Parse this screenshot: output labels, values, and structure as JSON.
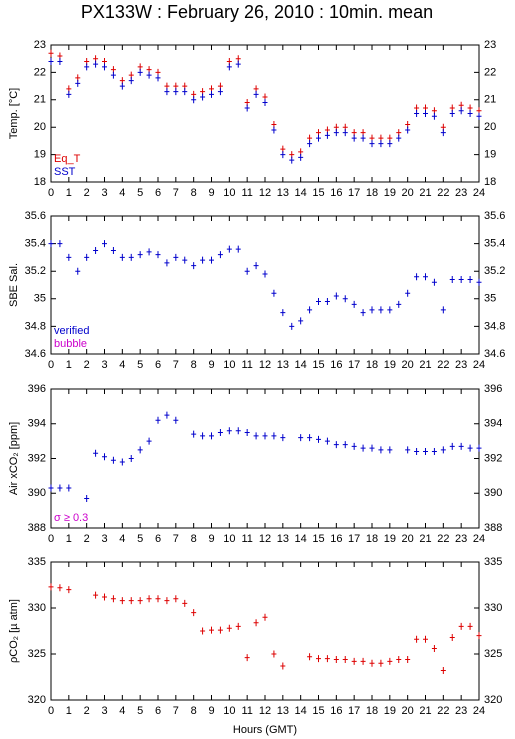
{
  "title": "PX133W : February 26, 2010 : 10min. mean",
  "x_label": "Hours (GMT)",
  "chart_data": [
    {
      "type": "scatter",
      "ylabel": "Temp. [°C]",
      "xlim": [
        0,
        24
      ],
      "xticks": [
        0,
        1,
        2,
        3,
        4,
        5,
        6,
        7,
        8,
        9,
        10,
        11,
        12,
        13,
        14,
        15,
        16,
        17,
        18,
        19,
        20,
        21,
        22,
        23,
        24
      ],
      "ylim": [
        18,
        23
      ],
      "yticks": [
        18,
        19,
        20,
        21,
        22,
        23
      ],
      "x": [
        0,
        0.5,
        1,
        1.5,
        2,
        2.5,
        3,
        3.5,
        4,
        4.5,
        5,
        5.5,
        6,
        6.5,
        7,
        7.5,
        8,
        8.5,
        9,
        9.5,
        10,
        10.5,
        11,
        11.5,
        12,
        12.5,
        13,
        13.5,
        14,
        14.5,
        15,
        15.5,
        16,
        16.5,
        17,
        17.5,
        18,
        18.5,
        19,
        19.5,
        20,
        20.5,
        21,
        21.5,
        22,
        22.5,
        23,
        23.5,
        24
      ],
      "series": [
        {
          "name": "Eq_T",
          "color": "#dd0000",
          "values": [
            22.7,
            22.6,
            21.4,
            21.8,
            22.4,
            22.5,
            22.4,
            22.1,
            21.7,
            21.9,
            22.2,
            22.1,
            22.0,
            21.5,
            21.5,
            21.5,
            21.2,
            21.3,
            21.4,
            21.5,
            22.4,
            22.5,
            20.9,
            21.4,
            21.1,
            20.1,
            19.2,
            19.0,
            19.1,
            19.6,
            19.8,
            19.9,
            20.0,
            20.0,
            19.8,
            19.8,
            19.6,
            19.6,
            19.6,
            19.8,
            20.1,
            20.7,
            20.7,
            20.6,
            20.0,
            20.7,
            20.8,
            20.7,
            20.6
          ]
        },
        {
          "name": "SST",
          "color": "#0000cc",
          "values": [
            22.4,
            22.4,
            21.2,
            21.6,
            22.2,
            22.3,
            22.2,
            21.9,
            21.5,
            21.7,
            22.0,
            21.9,
            21.8,
            21.3,
            21.3,
            21.3,
            21.0,
            21.1,
            21.2,
            21.3,
            22.2,
            22.3,
            20.7,
            21.2,
            20.9,
            19.9,
            19.0,
            18.8,
            18.9,
            19.4,
            19.6,
            19.7,
            19.8,
            19.8,
            19.6,
            19.6,
            19.4,
            19.4,
            19.4,
            19.6,
            19.9,
            20.5,
            20.5,
            20.4,
            19.8,
            20.5,
            20.6,
            20.5,
            20.4
          ]
        }
      ]
    },
    {
      "type": "scatter",
      "ylabel": "SBE Sal.",
      "xlim": [
        0,
        24
      ],
      "xticks": [
        0,
        1,
        2,
        3,
        4,
        5,
        6,
        7,
        8,
        9,
        10,
        11,
        12,
        13,
        14,
        15,
        16,
        17,
        18,
        19,
        20,
        21,
        22,
        23,
        24
      ],
      "ylim": [
        34.6,
        35.6
      ],
      "yticks": [
        34.6,
        34.8,
        35,
        35.2,
        35.4,
        35.6
      ],
      "x": [
        0,
        0.5,
        1,
        1.5,
        2,
        2.5,
        3,
        3.5,
        4,
        4.5,
        5,
        5.5,
        6,
        6.5,
        7,
        7.5,
        8,
        8.5,
        9,
        9.5,
        10,
        10.5,
        11,
        11.5,
        12,
        12.5,
        13,
        13.5,
        14,
        14.5,
        15,
        15.5,
        16,
        16.5,
        17,
        17.5,
        18,
        18.5,
        19,
        19.5,
        20,
        20.5,
        21,
        21.5,
        22,
        22.5,
        23,
        23.5,
        24
      ],
      "series": [
        {
          "name": "verified",
          "color": "#0000cc",
          "values": [
            35.4,
            35.4,
            35.3,
            35.2,
            35.3,
            35.35,
            35.4,
            35.35,
            35.3,
            35.3,
            35.32,
            35.34,
            35.32,
            35.26,
            35.3,
            35.28,
            35.24,
            35.28,
            35.28,
            35.32,
            35.36,
            35.36,
            35.2,
            35.24,
            35.18,
            35.04,
            34.9,
            34.8,
            34.84,
            34.92,
            34.98,
            34.98,
            35.02,
            35.0,
            34.96,
            34.9,
            34.92,
            34.92,
            34.92,
            34.96,
            35.04,
            35.16,
            35.16,
            35.12,
            34.92,
            35.14,
            35.14,
            35.14,
            35.12
          ]
        }
      ],
      "annotations": [
        {
          "text": "bubble",
          "color": "#cc00cc"
        }
      ]
    },
    {
      "type": "scatter",
      "ylabel": "Air xCO₂ [ppm]",
      "xlim": [
        0,
        24
      ],
      "xticks": [
        0,
        1,
        2,
        3,
        4,
        5,
        6,
        7,
        8,
        9,
        10,
        11,
        12,
        13,
        14,
        15,
        16,
        17,
        18,
        19,
        20,
        21,
        22,
        23,
        24
      ],
      "ylim": [
        388,
        396
      ],
      "yticks": [
        388,
        390,
        392,
        394,
        396
      ],
      "x": [
        0,
        0.5,
        1,
        1.5,
        2,
        2.5,
        3,
        3.5,
        4,
        4.5,
        5,
        5.5,
        6,
        6.5,
        7,
        7.5,
        8,
        8.5,
        9,
        9.5,
        10,
        10.5,
        11,
        11.5,
        12,
        12.5,
        13,
        13.5,
        14,
        14.5,
        15,
        15.5,
        16,
        16.5,
        17,
        17.5,
        18,
        18.5,
        19,
        19.5,
        20,
        20.5,
        21,
        21.5,
        22,
        22.5,
        23,
        23.5,
        24
      ],
      "series": [
        {
          "color": "#0000cc",
          "values": [
            390.3,
            390.3,
            390.3,
            null,
            389.7,
            392.3,
            392.1,
            391.9,
            391.8,
            392.0,
            392.5,
            393.0,
            394.2,
            394.5,
            394.2,
            null,
            393.4,
            393.3,
            393.3,
            393.5,
            393.6,
            393.6,
            393.5,
            393.3,
            393.3,
            393.3,
            393.2,
            null,
            393.2,
            393.2,
            393.1,
            393.0,
            392.8,
            392.8,
            392.7,
            392.6,
            392.6,
            392.5,
            392.5,
            null,
            392.5,
            392.4,
            392.4,
            392.4,
            392.5,
            392.7,
            392.7,
            392.6,
            392.6
          ]
        }
      ],
      "annotations": [
        {
          "text": "σ ≥ 0.3",
          "color": "#cc00cc"
        }
      ]
    },
    {
      "type": "scatter",
      "ylabel": "ρCO₂ [µ atm]",
      "xlim": [
        0,
        24
      ],
      "xticks": [
        0,
        1,
        2,
        3,
        4,
        5,
        6,
        7,
        8,
        9,
        10,
        11,
        12,
        13,
        14,
        15,
        16,
        17,
        18,
        19,
        20,
        21,
        22,
        23,
        24
      ],
      "ylim": [
        320,
        335
      ],
      "yticks": [
        320,
        325,
        330,
        335
      ],
      "x": [
        0,
        0.5,
        1,
        1.5,
        2,
        2.5,
        3,
        3.5,
        4,
        4.5,
        5,
        5.5,
        6,
        6.5,
        7,
        7.5,
        8,
        8.5,
        9,
        9.5,
        10,
        10.5,
        11,
        11.5,
        12,
        12.5,
        13,
        13.5,
        14,
        14.5,
        15,
        15.5,
        16,
        16.5,
        17,
        17.5,
        18,
        18.5,
        19,
        19.5,
        20,
        20.5,
        21,
        21.5,
        22,
        22.5,
        23,
        23.5,
        24
      ],
      "series": [
        {
          "color": "#dd0000",
          "values": [
            332.3,
            332.2,
            332.0,
            null,
            null,
            331.4,
            331.2,
            331.0,
            330.8,
            330.8,
            330.8,
            331.0,
            331.0,
            330.8,
            331.0,
            330.5,
            329.5,
            327.5,
            327.6,
            327.6,
            327.8,
            328.0,
            324.6,
            328.4,
            329.0,
            325.0,
            323.7,
            null,
            null,
            324.7,
            324.5,
            324.5,
            324.4,
            324.4,
            324.2,
            324.2,
            324.0,
            324.0,
            324.2,
            324.4,
            324.4,
            326.6,
            326.6,
            325.6,
            323.2,
            326.8,
            328.0,
            328.0,
            327.0
          ]
        }
      ]
    }
  ]
}
